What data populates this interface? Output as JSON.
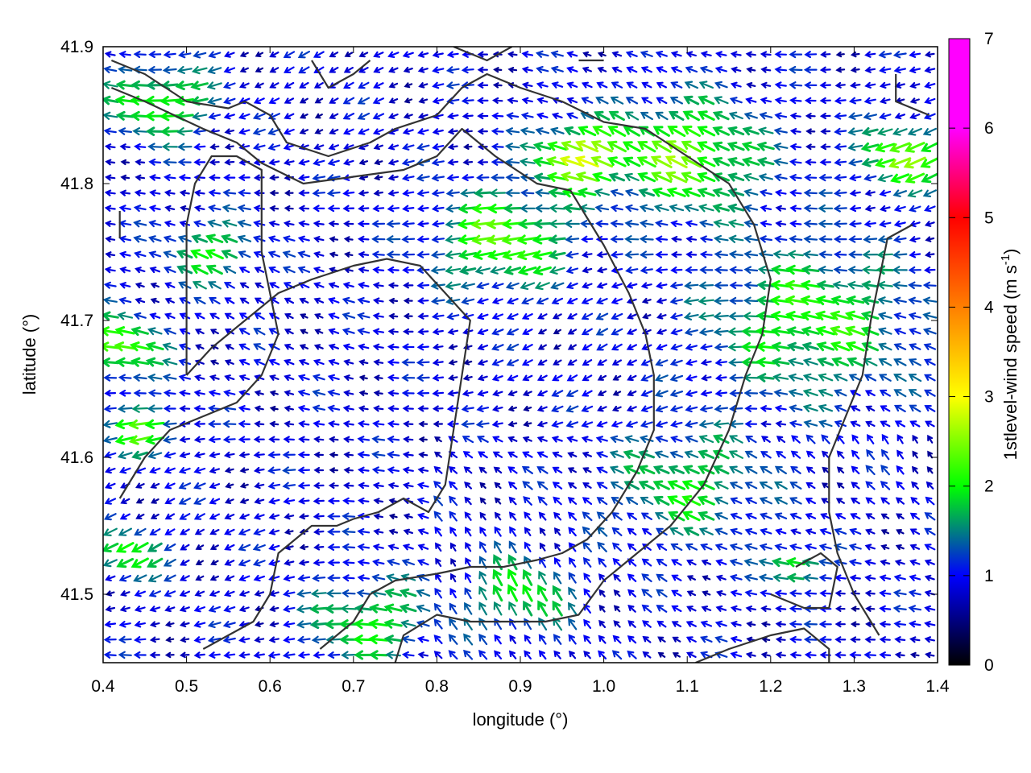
{
  "chart_data": {
    "type": "vector_field",
    "xlabel": "longitude (°)",
    "ylabel": "latitude (°)",
    "xlim": [
      0.4,
      1.4
    ],
    "ylim": [
      41.45,
      41.9
    ],
    "x_ticks": [
      "0.4",
      "0.5",
      "0.6",
      "0.7",
      "0.8",
      "0.9",
      "1.0",
      "1.1",
      "1.2",
      "1.3",
      "1.4"
    ],
    "y_ticks": [
      "41.5",
      "41.6",
      "41.7",
      "41.8",
      "41.9"
    ],
    "grid": false,
    "colorbar": {
      "label_prefix": "1stlevel-wind speed (m s",
      "label_exponent": "-1",
      "label_suffix": ")",
      "range": [
        0,
        7
      ],
      "ticks": [
        "0",
        "1",
        "2",
        "3",
        "4",
        "5",
        "6",
        "7"
      ],
      "colormap": [
        "#000000",
        "#0000ff",
        "#00ff00",
        "#ffff00",
        "#ff7f00",
        "#ff0000",
        "#ff00ff"
      ]
    },
    "contour_color": "#333333",
    "contours": [
      [
        [
          0.41,
          41.89
        ],
        [
          0.45,
          41.88
        ],
        [
          0.5,
          41.86
        ],
        [
          0.55,
          41.855
        ],
        [
          0.57,
          41.86
        ],
        [
          0.6,
          41.85
        ],
        [
          0.62,
          41.83
        ],
        [
          0.67,
          41.82
        ],
        [
          0.72,
          41.83
        ],
        [
          0.75,
          41.84
        ],
        [
          0.8,
          41.85
        ],
        [
          0.83,
          41.87
        ],
        [
          0.86,
          41.88
        ],
        [
          0.9,
          41.87
        ],
        [
          0.95,
          41.86
        ],
        [
          1.0,
          41.845
        ],
        [
          1.05,
          41.84
        ],
        [
          1.1,
          41.82
        ],
        [
          1.15,
          41.8
        ],
        [
          1.18,
          41.77
        ],
        [
          1.2,
          41.73
        ],
        [
          1.19,
          41.69
        ],
        [
          1.17,
          41.66
        ],
        [
          1.15,
          41.62
        ],
        [
          1.12,
          41.58
        ],
        [
          1.08,
          41.55
        ],
        [
          1.04,
          41.53
        ],
        [
          1.0,
          41.51
        ],
        [
          0.97,
          41.485
        ],
        [
          0.93,
          41.48
        ],
        [
          0.89,
          41.48
        ],
        [
          0.84,
          41.48
        ],
        [
          0.8,
          41.485
        ],
        [
          0.76,
          41.47
        ],
        [
          0.75,
          41.45
        ]
      ],
      [
        [
          0.41,
          41.87
        ],
        [
          0.45,
          41.86
        ],
        [
          0.52,
          41.84
        ],
        [
          0.56,
          41.83
        ],
        [
          0.59,
          41.815
        ],
        [
          0.64,
          41.8
        ],
        [
          0.7,
          41.805
        ],
        [
          0.76,
          41.81
        ],
        [
          0.8,
          41.82
        ],
        [
          0.83,
          41.84
        ],
        [
          0.87,
          41.82
        ],
        [
          0.92,
          41.8
        ],
        [
          0.96,
          41.795
        ],
        [
          0.98,
          41.775
        ],
        [
          1.0,
          41.755
        ],
        [
          1.03,
          41.72
        ],
        [
          1.05,
          41.69
        ],
        [
          1.06,
          41.66
        ],
        [
          1.06,
          41.62
        ],
        [
          1.04,
          41.59
        ],
        [
          1.01,
          41.56
        ],
        [
          0.98,
          41.54
        ],
        [
          0.95,
          41.53
        ],
        [
          0.92,
          41.525
        ],
        [
          0.88,
          41.52
        ],
        [
          0.84,
          41.52
        ],
        [
          0.8,
          41.515
        ],
        [
          0.75,
          41.51
        ],
        [
          0.72,
          41.5
        ],
        [
          0.7,
          41.48
        ],
        [
          0.66,
          41.46
        ]
      ],
      [
        [
          0.5,
          41.66
        ],
        [
          0.53,
          41.68
        ],
        [
          0.57,
          41.7
        ],
        [
          0.61,
          41.72
        ],
        [
          0.65,
          41.73
        ],
        [
          0.7,
          41.74
        ],
        [
          0.74,
          41.745
        ],
        [
          0.78,
          41.74
        ],
        [
          0.81,
          41.72
        ],
        [
          0.84,
          41.7
        ],
        [
          0.83,
          41.66
        ],
        [
          0.82,
          41.62
        ],
        [
          0.81,
          41.58
        ],
        [
          0.79,
          41.56
        ],
        [
          0.76,
          41.57
        ],
        [
          0.73,
          41.56
        ],
        [
          0.7,
          41.555
        ],
        [
          0.68,
          41.55
        ],
        [
          0.65,
          41.55
        ],
        [
          0.63,
          41.54
        ],
        [
          0.61,
          41.53
        ],
        [
          0.6,
          41.5
        ],
        [
          0.58,
          41.48
        ],
        [
          0.55,
          41.47
        ],
        [
          0.52,
          41.46
        ]
      ],
      [
        [
          0.42,
          41.57
        ],
        [
          0.45,
          41.6
        ],
        [
          0.48,
          41.62
        ],
        [
          0.52,
          41.63
        ],
        [
          0.56,
          41.64
        ],
        [
          0.59,
          41.66
        ],
        [
          0.61,
          41.69
        ],
        [
          0.6,
          41.72
        ],
        [
          0.59,
          41.75
        ],
        [
          0.59,
          41.78
        ],
        [
          0.59,
          41.81
        ],
        [
          0.56,
          41.82
        ],
        [
          0.53,
          41.82
        ],
        [
          0.51,
          41.8
        ],
        [
          0.5,
          41.77
        ],
        [
          0.5,
          41.74
        ],
        [
          0.5,
          41.7
        ],
        [
          0.5,
          41.66
        ]
      ],
      [
        [
          1.11,
          41.45
        ],
        [
          1.15,
          41.46
        ],
        [
          1.2,
          41.47
        ],
        [
          1.24,
          41.475
        ],
        [
          1.27,
          41.46
        ],
        [
          1.27,
          41.45
        ]
      ],
      [
        [
          1.33,
          41.47
        ],
        [
          1.3,
          41.5
        ],
        [
          1.28,
          41.53
        ],
        [
          1.27,
          41.56
        ],
        [
          1.27,
          41.6
        ],
        [
          1.29,
          41.63
        ],
        [
          1.31,
          41.66
        ],
        [
          1.32,
          41.7
        ],
        [
          1.33,
          41.73
        ],
        [
          1.34,
          41.76
        ],
        [
          1.37,
          41.77
        ]
      ],
      [
        [
          1.23,
          41.52
        ],
        [
          1.26,
          41.53
        ],
        [
          1.28,
          41.52
        ],
        [
          1.27,
          41.49
        ],
        [
          1.24,
          41.49
        ],
        [
          1.2,
          41.5
        ]
      ],
      [
        [
          1.35,
          41.88
        ],
        [
          1.35,
          41.86
        ],
        [
          1.39,
          41.85
        ]
      ],
      [
        [
          0.65,
          41.89
        ],
        [
          0.67,
          41.87
        ],
        [
          0.7,
          41.88
        ],
        [
          0.72,
          41.89
        ]
      ],
      [
        [
          0.82,
          41.9
        ],
        [
          0.86,
          41.89
        ],
        [
          0.89,
          41.9
        ]
      ],
      [
        [
          0.97,
          41.89
        ],
        [
          1.0,
          41.89
        ]
      ],
      [
        [
          0.42,
          41.76
        ],
        [
          0.42,
          41.78
        ]
      ]
    ],
    "speed_regions": [
      {
        "lon": 0.42,
        "lat": 41.68,
        "radius": 0.05,
        "speed": 2.4
      },
      {
        "lon": 0.45,
        "lat": 41.62,
        "radius": 0.04,
        "speed": 2.2
      },
      {
        "lon": 0.47,
        "lat": 41.86,
        "radius": 0.06,
        "speed": 2.2
      },
      {
        "lon": 0.53,
        "lat": 41.75,
        "radius": 0.05,
        "speed": 2.0
      },
      {
        "lon": 0.88,
        "lat": 41.76,
        "radius": 0.08,
        "speed": 2.3
      },
      {
        "lon": 0.97,
        "lat": 41.82,
        "radius": 0.05,
        "speed": 2.7
      },
      {
        "lon": 1.1,
        "lat": 41.82,
        "radius": 0.09,
        "speed": 2.4
      },
      {
        "lon": 1.25,
        "lat": 41.7,
        "radius": 0.12,
        "speed": 2.1
      },
      {
        "lon": 1.36,
        "lat": 41.82,
        "radius": 0.05,
        "speed": 2.5
      },
      {
        "lon": 1.1,
        "lat": 41.58,
        "radius": 0.09,
        "speed": 1.9
      },
      {
        "lon": 0.9,
        "lat": 41.5,
        "radius": 0.06,
        "speed": 2.0
      },
      {
        "lon": 0.72,
        "lat": 41.48,
        "radius": 0.07,
        "speed": 2.0
      },
      {
        "lon": 1.23,
        "lat": 41.52,
        "radius": 0.03,
        "speed": 2.3
      },
      {
        "lon": 0.43,
        "lat": 41.53,
        "radius": 0.04,
        "speed": 2.1
      }
    ],
    "background_speed": 0.9
  }
}
